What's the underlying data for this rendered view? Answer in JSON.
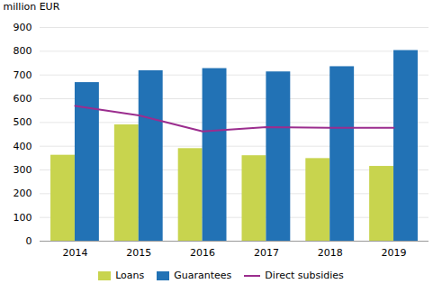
{
  "chart_data": {
    "type": "bar",
    "ylabel": "million EUR",
    "categories": [
      "2014",
      "2015",
      "2016",
      "2017",
      "2018",
      "2019"
    ],
    "series": [
      {
        "name": "Loans",
        "type": "bar",
        "color": "#c8d44e",
        "values": [
          362,
          490,
          390,
          360,
          348,
          315
        ]
      },
      {
        "name": "Guarantees",
        "type": "bar",
        "color": "#2272b5",
        "values": [
          668,
          718,
          727,
          713,
          735,
          803
        ]
      },
      {
        "name": "Direct subsidies",
        "type": "line",
        "color": "#9b2d8e",
        "values": [
          570,
          530,
          462,
          480,
          478,
          478
        ]
      }
    ],
    "ylim": [
      0,
      900
    ],
    "yticks": [
      0,
      100,
      200,
      300,
      400,
      500,
      600,
      700,
      800,
      900
    ],
    "grid": true,
    "legend": "bottom"
  }
}
